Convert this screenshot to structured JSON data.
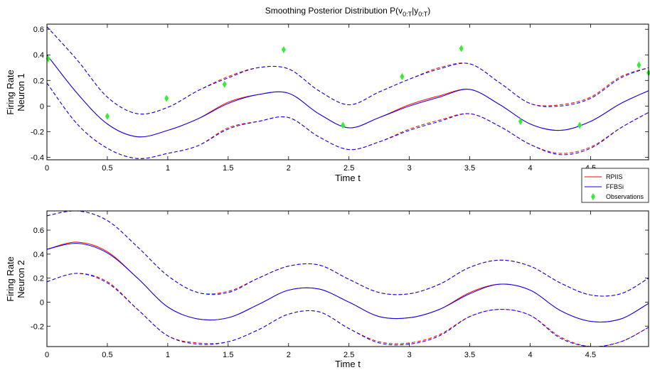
{
  "title": {
    "text": "Smoothing Posterior Distribution P(",
    "v": "v",
    "v_sub": "0:T",
    "bar": "|y",
    "y_sub": "0:T",
    "close": ")"
  },
  "chart_data": [
    {
      "type": "line",
      "panel": "top",
      "ylabel_line1": "Firing Rate",
      "ylabel_line2": "Neuron 1",
      "xlabel": "Time t",
      "xlim": [
        0,
        4.98
      ],
      "ylim": [
        -0.42,
        0.64
      ],
      "xticks": [
        "0",
        "0.5",
        "1",
        "1.5",
        "2",
        "2.5",
        "3",
        "3.5",
        "4",
        "4.5"
      ],
      "yticks": [
        "-0.4",
        "-0.2",
        "0",
        "0.2",
        "0.4",
        "0.6"
      ],
      "x": [
        0,
        0.25,
        0.5,
        0.75,
        1.0,
        1.25,
        1.5,
        1.75,
        2.0,
        2.25,
        2.5,
        2.75,
        3.0,
        3.25,
        3.5,
        3.75,
        4.0,
        4.25,
        4.5,
        4.75,
        4.98
      ],
      "series": [
        {
          "name": "RPIIS",
          "color": "#ff0000",
          "style": "solid",
          "values": [
            0.4,
            0.1,
            -0.14,
            -0.24,
            -0.19,
            -0.1,
            0.03,
            0.09,
            0.1,
            -0.06,
            -0.17,
            -0.09,
            0.01,
            0.08,
            0.13,
            0.01,
            -0.14,
            -0.19,
            -0.12,
            0.02,
            0.12
          ]
        },
        {
          "name": "FFBSi",
          "color": "#0000ff",
          "style": "solid",
          "values": [
            0.4,
            0.1,
            -0.14,
            -0.24,
            -0.19,
            -0.1,
            0.02,
            0.09,
            0.1,
            -0.06,
            -0.17,
            -0.09,
            0.0,
            0.07,
            0.13,
            0.01,
            -0.14,
            -0.19,
            -0.12,
            0.02,
            0.12
          ]
        },
        {
          "name": "RPIIS upper",
          "color": "#ff0000",
          "style": "dashed",
          "values": [
            0.62,
            0.36,
            0.07,
            -0.06,
            -0.01,
            0.12,
            0.23,
            0.3,
            0.29,
            0.12,
            0.01,
            0.11,
            0.21,
            0.3,
            0.33,
            0.18,
            0.02,
            0.01,
            0.07,
            0.23,
            0.3
          ]
        },
        {
          "name": "FFBSi upper",
          "color": "#0000ff",
          "style": "dashed",
          "values": [
            0.62,
            0.36,
            0.07,
            -0.06,
            -0.01,
            0.12,
            0.22,
            0.3,
            0.29,
            0.12,
            0.01,
            0.11,
            0.21,
            0.29,
            0.33,
            0.18,
            0.02,
            0.0,
            0.06,
            0.22,
            0.3
          ]
        },
        {
          "name": "RPIIS lower",
          "color": "#ff0000",
          "style": "dashed",
          "values": [
            0.18,
            -0.14,
            -0.33,
            -0.41,
            -0.37,
            -0.31,
            -0.17,
            -0.12,
            -0.09,
            -0.24,
            -0.34,
            -0.28,
            -0.18,
            -0.11,
            -0.06,
            -0.16,
            -0.3,
            -0.37,
            -0.32,
            -0.17,
            -0.05
          ]
        },
        {
          "name": "FFBSi lower",
          "color": "#0000ff",
          "style": "dashed",
          "values": [
            0.18,
            -0.14,
            -0.33,
            -0.41,
            -0.37,
            -0.31,
            -0.18,
            -0.12,
            -0.09,
            -0.24,
            -0.34,
            -0.28,
            -0.19,
            -0.12,
            -0.06,
            -0.16,
            -0.3,
            -0.38,
            -0.33,
            -0.17,
            -0.05
          ]
        }
      ],
      "observations": {
        "name": "Observations",
        "color": "#33ee33",
        "x": [
          0.01,
          0.5,
          0.99,
          1.47,
          1.96,
          2.45,
          2.94,
          3.43,
          3.92,
          4.41,
          4.9,
          4.98
        ],
        "y": [
          0.37,
          -0.08,
          0.06,
          0.17,
          0.44,
          -0.15,
          0.23,
          0.45,
          -0.12,
          -0.15,
          0.32,
          0.26
        ]
      },
      "legend": {
        "position": "bottom-right-outside",
        "entries": [
          "RPIIS",
          "FFBSi",
          "Observations"
        ]
      }
    },
    {
      "type": "line",
      "panel": "bottom",
      "ylabel_line1": "Firing Rate",
      "ylabel_line2": "Neuron 2",
      "xlabel": "Time t",
      "xlim": [
        0,
        4.98
      ],
      "ylim": [
        -0.37,
        0.76
      ],
      "xticks": [
        "0",
        "0.5",
        "1",
        "1.5",
        "2",
        "2.5",
        "3",
        "3.5",
        "4",
        "4.5"
      ],
      "yticks": [
        "-0.2",
        "0",
        "0.2",
        "0.4",
        "0.6"
      ],
      "x": [
        0,
        0.25,
        0.5,
        0.75,
        1.0,
        1.25,
        1.5,
        1.75,
        2.0,
        2.25,
        2.5,
        2.75,
        3.0,
        3.25,
        3.5,
        3.75,
        4.0,
        4.25,
        4.5,
        4.75,
        4.98
      ],
      "series": [
        {
          "name": "RPIIS",
          "color": "#ff0000",
          "style": "solid",
          "values": [
            0.44,
            0.5,
            0.42,
            0.2,
            -0.04,
            -0.14,
            -0.13,
            -0.02,
            0.1,
            0.11,
            0.0,
            -0.12,
            -0.13,
            -0.06,
            0.08,
            0.15,
            0.1,
            -0.07,
            -0.16,
            -0.14,
            -0.01
          ]
        },
        {
          "name": "FFBSi",
          "color": "#0000ff",
          "style": "solid",
          "values": [
            0.44,
            0.49,
            0.41,
            0.2,
            -0.04,
            -0.14,
            -0.13,
            -0.02,
            0.1,
            0.11,
            0.0,
            -0.12,
            -0.13,
            -0.06,
            0.07,
            0.15,
            0.1,
            -0.07,
            -0.16,
            -0.14,
            -0.01
          ]
        },
        {
          "name": "RPIIS upper",
          "color": "#ff0000",
          "style": "dashed",
          "values": [
            0.72,
            0.76,
            0.68,
            0.46,
            0.22,
            0.08,
            0.09,
            0.2,
            0.3,
            0.31,
            0.19,
            0.08,
            0.07,
            0.15,
            0.29,
            0.35,
            0.3,
            0.16,
            0.06,
            0.07,
            0.2
          ]
        },
        {
          "name": "FFBSi upper",
          "color": "#0000ff",
          "style": "dashed",
          "values": [
            0.72,
            0.76,
            0.68,
            0.46,
            0.22,
            0.08,
            0.08,
            0.2,
            0.3,
            0.31,
            0.19,
            0.08,
            0.07,
            0.15,
            0.29,
            0.35,
            0.3,
            0.16,
            0.06,
            0.07,
            0.2
          ]
        },
        {
          "name": "RPIIS lower",
          "color": "#ff0000",
          "style": "dashed",
          "values": [
            0.17,
            0.24,
            0.17,
            -0.06,
            -0.28,
            -0.34,
            -0.33,
            -0.23,
            -0.1,
            -0.08,
            -0.22,
            -0.33,
            -0.34,
            -0.27,
            -0.12,
            -0.06,
            -0.11,
            -0.29,
            -0.37,
            -0.33,
            -0.21
          ]
        },
        {
          "name": "FFBSi lower",
          "color": "#0000ff",
          "style": "dashed",
          "values": [
            0.17,
            0.24,
            0.16,
            -0.06,
            -0.28,
            -0.35,
            -0.33,
            -0.23,
            -0.1,
            -0.08,
            -0.22,
            -0.34,
            -0.35,
            -0.28,
            -0.12,
            -0.06,
            -0.11,
            -0.3,
            -0.37,
            -0.33,
            -0.21
          ]
        }
      ]
    }
  ]
}
